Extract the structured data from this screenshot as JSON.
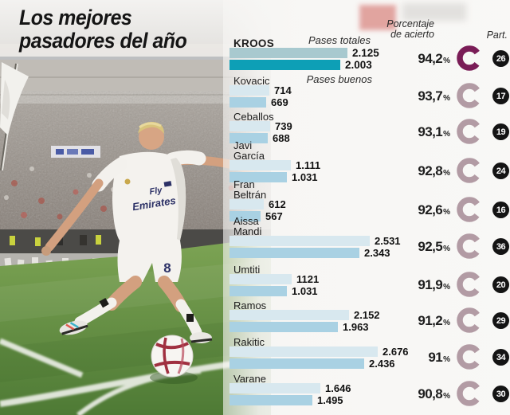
{
  "title": "Los mejores\npasadores del año",
  "header": {
    "col_pases_totales": "Pases totales",
    "col_pases_buenos": "Pases buenos",
    "col_accuracy": "Porcentaje\nde acierto",
    "col_matches": "Part."
  },
  "labels": {
    "percent_symbol": "%"
  },
  "photo": {
    "jersey_sponsor_line1": "Fly",
    "jersey_sponsor_line2": "Emirates",
    "shorts_number": "8"
  },
  "colors": {
    "highlight_bar_total": "#a8c9cf",
    "highlight_bar_good": "#0d9fb6",
    "bar_total": "#d8e8ef",
    "bar_good": "#a9d1e3",
    "highlight_ring": "#7a1d57",
    "ring": "#b29ba4",
    "badge": "#141414",
    "pitch_green": "#5d8a3e"
  },
  "chart_data": {
    "type": "bar",
    "orientation": "horizontal",
    "title": "Los mejores pasadores del año",
    "series_labels": [
      "Pases totales",
      "Pases buenos"
    ],
    "value_axis": "passes",
    "players": [
      {
        "name": "KROOS",
        "total": 2125,
        "total_label": "2.125",
        "good": 2003,
        "good_label": "2.003",
        "accuracy": 94.2,
        "accuracy_label": "94,2",
        "matches": 26,
        "matches_label": "26",
        "highlight": true
      },
      {
        "name": "Kovacic",
        "total": 714,
        "total_label": "714",
        "good": 669,
        "good_label": "669",
        "accuracy": 93.7,
        "accuracy_label": "93,7",
        "matches": 17,
        "matches_label": "17",
        "highlight": false
      },
      {
        "name": "Ceballos",
        "total": 739,
        "total_label": "739",
        "good": 688,
        "good_label": "688",
        "accuracy": 93.1,
        "accuracy_label": "93,1",
        "matches": 19,
        "matches_label": "19",
        "highlight": false
      },
      {
        "name": "Javi\nGarcía",
        "total": 1111,
        "total_label": "1.111",
        "good": 1031,
        "good_label": "1.031",
        "accuracy": 92.8,
        "accuracy_label": "92,8",
        "matches": 24,
        "matches_label": "24",
        "highlight": false
      },
      {
        "name": "Fran\nBeltrán",
        "total": 612,
        "total_label": "612",
        "good": 567,
        "good_label": "567",
        "accuracy": 92.6,
        "accuracy_label": "92,6",
        "matches": 16,
        "matches_label": "16",
        "highlight": false
      },
      {
        "name": "Aissa\nMandi",
        "total": 2531,
        "total_label": "2.531",
        "good": 2343,
        "good_label": "2.343",
        "accuracy": 92.5,
        "accuracy_label": "92,5",
        "matches": 36,
        "matches_label": "36",
        "highlight": false
      },
      {
        "name": "Umtiti",
        "total": 1121,
        "total_label": "1121",
        "good": 1031,
        "good_label": "1.031",
        "accuracy": 91.9,
        "accuracy_label": "91,9",
        "matches": 20,
        "matches_label": "20",
        "highlight": false
      },
      {
        "name": "Ramos",
        "total": 2152,
        "total_label": "2.152",
        "good": 1963,
        "good_label": "1.963",
        "accuracy": 91.2,
        "accuracy_label": "91,2",
        "matches": 29,
        "matches_label": "29",
        "highlight": false
      },
      {
        "name": "Rakitic",
        "total": 2676,
        "total_label": "2.676",
        "good": 2436,
        "good_label": "2.436",
        "accuracy": 91.0,
        "accuracy_label": "91",
        "matches": 34,
        "matches_label": "34",
        "highlight": false
      },
      {
        "name": "Varane",
        "total": 1646,
        "total_label": "1.646",
        "good": 1495,
        "good_label": "1.495",
        "accuracy": 90.8,
        "accuracy_label": "90,8",
        "matches": 30,
        "matches_label": "30",
        "highlight": false
      }
    ]
  }
}
